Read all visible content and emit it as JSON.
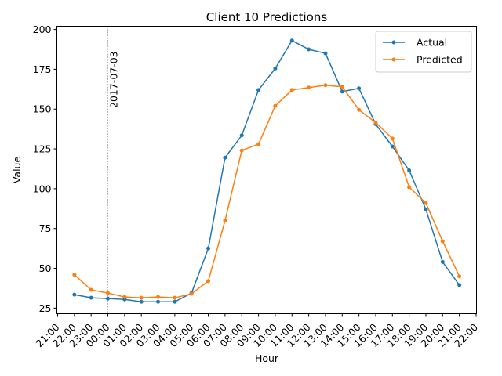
{
  "chart_data": {
    "type": "line",
    "title": "Client 10 Predictions",
    "xlabel": "Hour",
    "ylabel": "Value",
    "ylim": [
      21.5,
      202
    ],
    "yticks": [
      25,
      50,
      75,
      100,
      125,
      150,
      175,
      200
    ],
    "xtick_labels": [
      "21:00",
      "22:00",
      "23:00",
      "00:00",
      "01:00",
      "02:00",
      "03:00",
      "04:00",
      "05:00",
      "06:00",
      "07:00",
      "08:00",
      "09:00",
      "10:00",
      "11:00",
      "12:00",
      "13:00",
      "14:00",
      "15:00",
      "16:00",
      "17:00",
      "18:00",
      "19:00",
      "20:00",
      "21:00",
      "22:00"
    ],
    "x": [
      "22:00",
      "23:00",
      "00:00",
      "01:00",
      "02:00",
      "03:00",
      "04:00",
      "05:00",
      "06:00",
      "07:00",
      "08:00",
      "09:00",
      "10:00",
      "11:00",
      "12:00",
      "13:00",
      "14:00",
      "15:00",
      "16:00",
      "17:00",
      "18:00",
      "19:00",
      "20:00",
      "21:00"
    ],
    "series": [
      {
        "name": "Actual",
        "color": "#1f77b4",
        "values": [
          33.5,
          31.5,
          31,
          30.5,
          29,
          29,
          29,
          34.5,
          62.5,
          119.5,
          133.5,
          162,
          175.5,
          193,
          187.5,
          185,
          161,
          163,
          140.5,
          126.5,
          111.5,
          87,
          54,
          39.5
        ]
      },
      {
        "name": "Predicted",
        "color": "#ff7f0e",
        "values": [
          46,
          36.5,
          34.5,
          32,
          31.5,
          32,
          31.5,
          34,
          42,
          80,
          124,
          128,
          152,
          162,
          163.5,
          165,
          164,
          149.5,
          141.5,
          131.5,
          101,
          91,
          67,
          45
        ]
      }
    ],
    "annotation": {
      "x": "00:00",
      "text": "2017-07-03"
    },
    "grid": false,
    "legend_position": "top-right"
  }
}
